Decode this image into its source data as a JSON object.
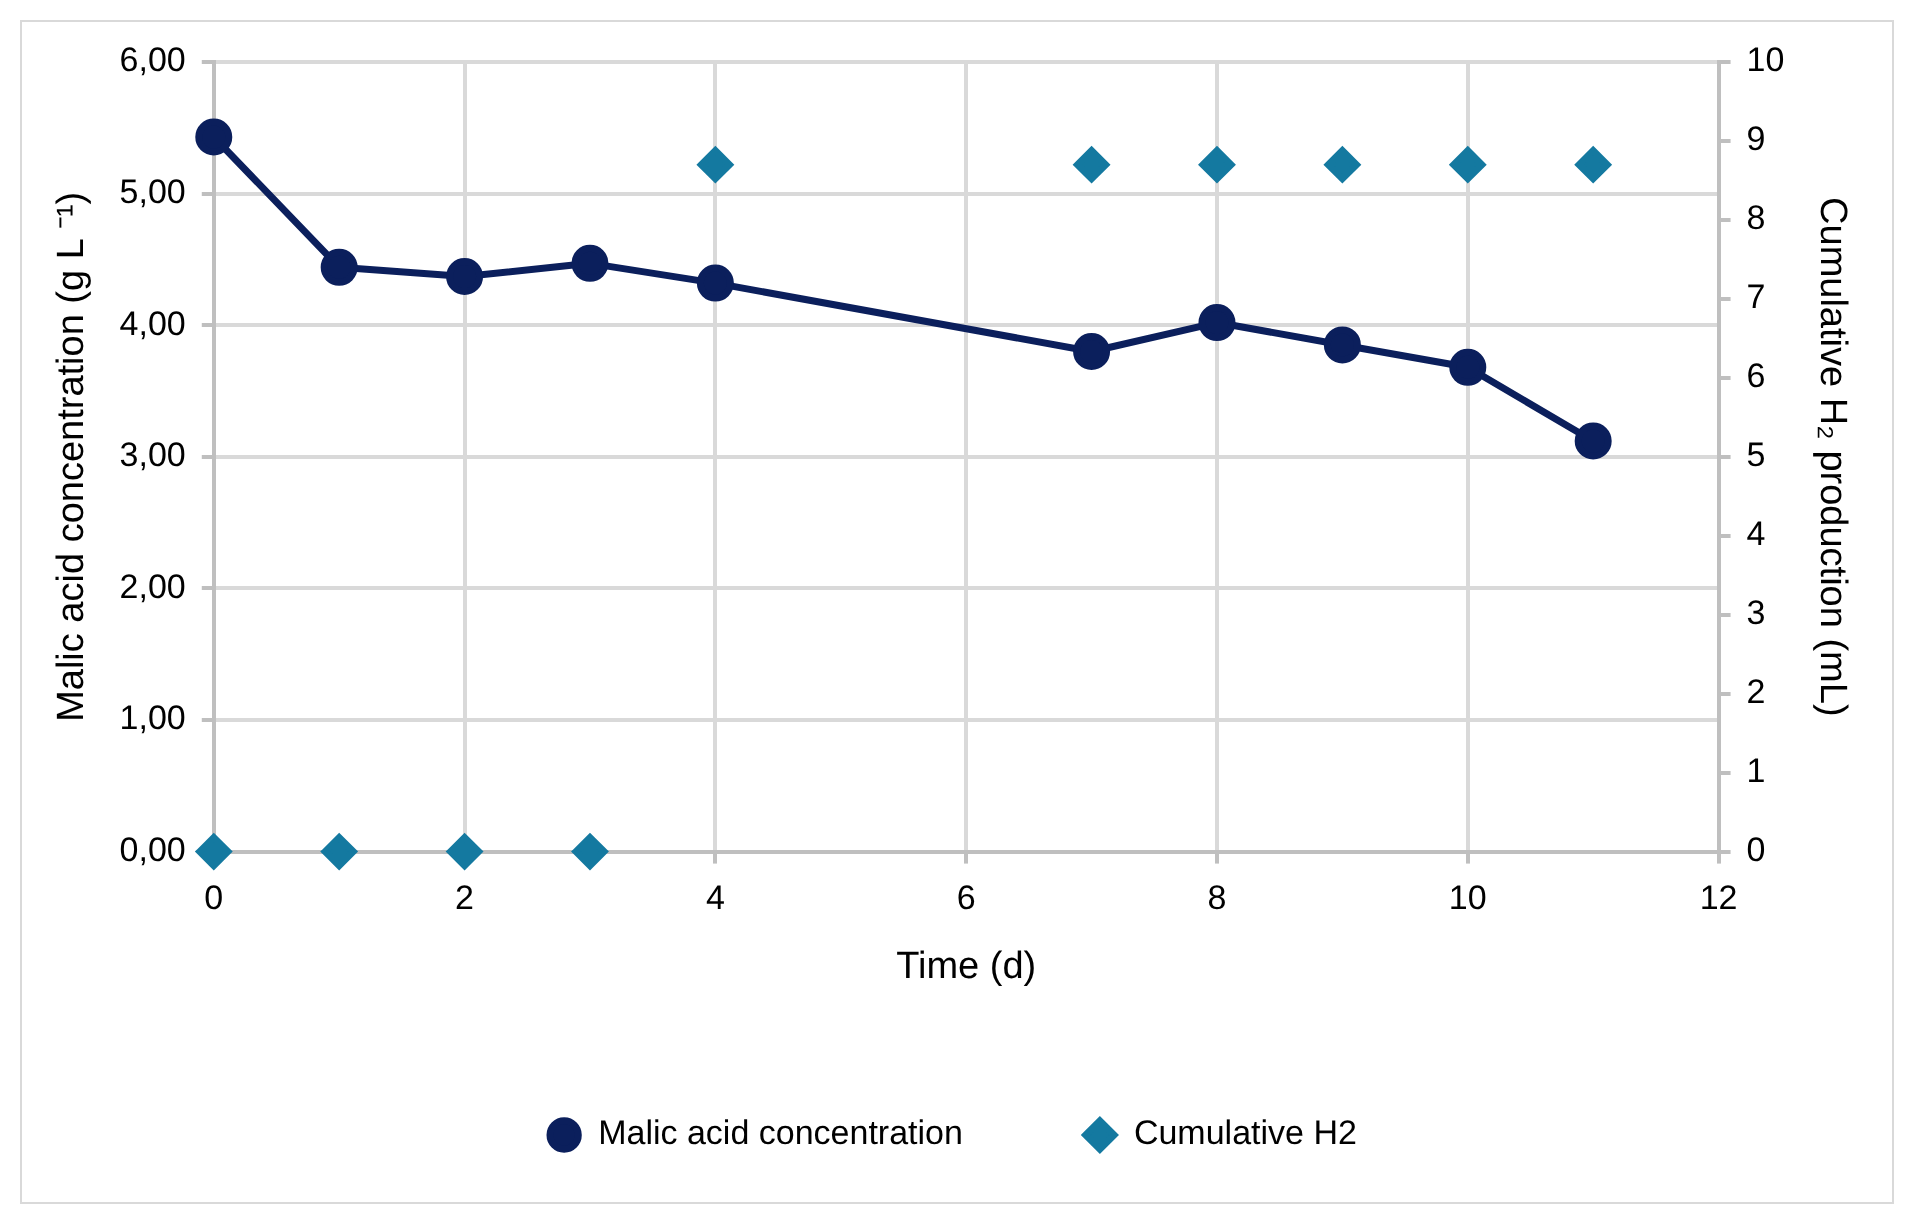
{
  "chart_data": {
    "type": "line",
    "xlabel": "Time (d)",
    "ylabel": "Malic acid concentration (g L ⁻¹)",
    "y2label": "Cumulative H₂ production (mL)",
    "x": [
      0,
      1,
      2,
      3,
      4,
      7,
      8,
      9,
      10,
      11
    ],
    "series": [
      {
        "name": "Malic acid concentration",
        "color": "#0b1f5c",
        "marker": "circle",
        "values": [
          5.43,
          4.44,
          4.37,
          4.47,
          4.32,
          3.8,
          4.02,
          3.85,
          3.68,
          3.12
        ]
      },
      {
        "name": "Cumulative H2",
        "color": "#1479a0",
        "type": "scatter",
        "marker": "diamond",
        "axis": "y2",
        "values": [
          0,
          0,
          0,
          0,
          8.7,
          8.7,
          8.7,
          8.7,
          8.7,
          8.7
        ]
      }
    ],
    "xlim": [
      0,
      12
    ],
    "xticks": [
      0,
      2,
      4,
      6,
      8,
      10,
      12
    ],
    "ylim": [
      0,
      6
    ],
    "yticks": [
      {
        "value": 0,
        "label": "0,00"
      },
      {
        "value": 1,
        "label": "1,00"
      },
      {
        "value": 2,
        "label": "2,00"
      },
      {
        "value": 3,
        "label": "3,00"
      },
      {
        "value": 4,
        "label": "4,00"
      },
      {
        "value": 5,
        "label": "5,00"
      },
      {
        "value": 6,
        "label": "6,00"
      }
    ],
    "y2lim": [
      0,
      10
    ],
    "y2ticks": [
      0,
      1,
      2,
      3,
      4,
      5,
      6,
      7,
      8,
      9,
      10
    ],
    "grid": true,
    "legend": "bottom"
  }
}
